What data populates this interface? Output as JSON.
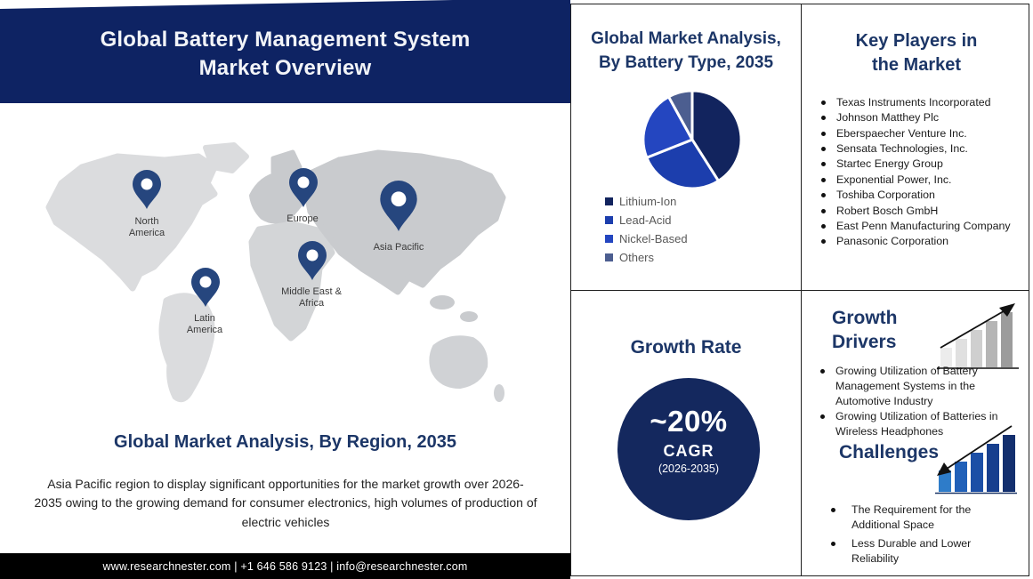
{
  "title": "Global Battery Management System Market Overview",
  "map": {
    "regions": [
      {
        "label": "North America"
      },
      {
        "label": "Europe"
      },
      {
        "label": "Asia Pacific"
      },
      {
        "label": "Middle East & Africa"
      },
      {
        "label": "Latin America"
      }
    ],
    "pin_icon": "location-pin",
    "pin_color": "#26467E"
  },
  "region_analysis": {
    "heading": "Global Market Analysis, By Region, 2035",
    "text": "Asia Pacific region to display significant opportunities for the market growth over 2026-2035 owing to the growing demand for consumer electronics, high volumes of production of electric vehicles"
  },
  "footer": {
    "text": "www.researchnester.com | +1 646 586 9123 | info@researchnester.com",
    "background": "#000000"
  },
  "chart_data": {
    "type": "pie",
    "title": "Global Market Analysis, By Battery Type, 2035",
    "labels": [
      "Lithium-Ion",
      "Lead-Acid",
      "Nickel-Based",
      "Others"
    ],
    "values": [
      41,
      28,
      23,
      8
    ],
    "colors": [
      "#12245E",
      "#1C3EAD",
      "#2446C0",
      "#4C5E90"
    ],
    "legend_position": "bottom-left",
    "start_angle_deg": -90,
    "direction": "clockwise"
  },
  "growth_rate": {
    "heading": "Growth Rate",
    "value": "~20%",
    "metric": "CAGR",
    "period": "(2026-2035)",
    "circle_color": "#14285E"
  },
  "key_players": {
    "heading": "Key Players in the Market",
    "items": [
      "Texas Instruments Incorporated",
      "Johnson Matthey Plc",
      "Eberspaecher Venture Inc.",
      "Sensata Technologies, Inc.",
      "Startec Energy Group",
      "Exponential Power, Inc.",
      "Toshiba Corporation",
      "Robert Bosch GmbH",
      "East Penn Manufacturing Company",
      "Panasonic Corporation"
    ]
  },
  "drivers": {
    "heading": "Growth Drivers",
    "icon": "ascending-bar-chart-up-arrow",
    "items": [
      "Growing Utilization of Battery Management Systems in the Automotive Industry",
      "Growing Utilization of Batteries in Wireless Headphones"
    ]
  },
  "challenges": {
    "heading": "Challenges",
    "icon": "ascending-bar-chart-down-arrow",
    "items": [
      "The Requirement for the Additional Space",
      "Less Durable and Lower Reliability"
    ]
  },
  "accent_colors": {
    "banner_navy": "#0E2363",
    "heading_navy": "#1C3667"
  }
}
